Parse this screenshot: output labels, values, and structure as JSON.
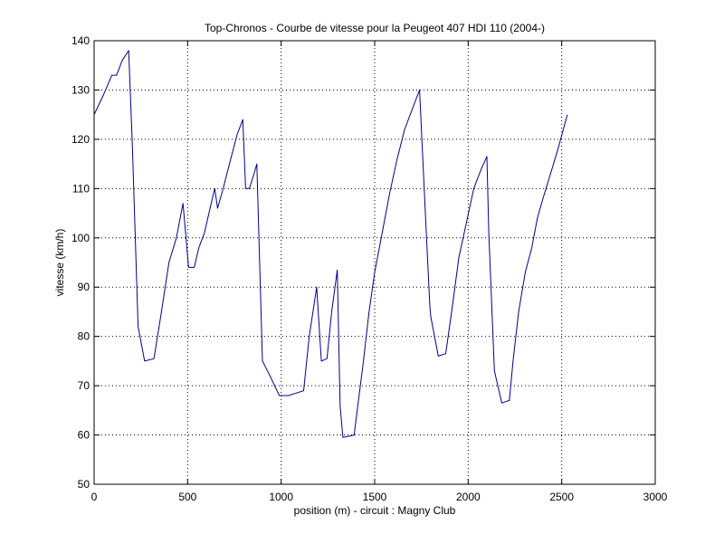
{
  "chart_data": {
    "type": "line",
    "title": "Top-Chronos - Courbe de vitesse pour la Peugeot 407 HDI 110 (2004-)",
    "xlabel": "position (m) - circuit : Magny Club",
    "ylabel": "vitesse (km/h)",
    "xlim": [
      0,
      3000
    ],
    "ylim": [
      50,
      140
    ],
    "xticks": [
      0,
      500,
      1000,
      1500,
      2000,
      2500,
      3000
    ],
    "xtick_labels": [
      "0",
      "500",
      "1000",
      "1500",
      "2000",
      "2500",
      "3000"
    ],
    "yticks": [
      50,
      60,
      70,
      80,
      90,
      100,
      110,
      120,
      130,
      140
    ],
    "ytick_labels": [
      "50",
      "60",
      "70",
      "80",
      "90",
      "100",
      "110",
      "120",
      "130",
      "140"
    ],
    "grid": true,
    "line_color": "#00008f",
    "series": [
      {
        "x": [
          0,
          50,
          95,
          120,
          150,
          185,
          205,
          235,
          270,
          320,
          360,
          400,
          440,
          475,
          505,
          535,
          560,
          590,
          620,
          645,
          660,
          690,
          730,
          765,
          795,
          810,
          830,
          855,
          870,
          900,
          940,
          990,
          1040,
          1080,
          1120,
          1150,
          1190,
          1215,
          1245,
          1270,
          1300,
          1315,
          1330,
          1390,
          1440,
          1470,
          1500,
          1540,
          1580,
          1620,
          1660,
          1700,
          1740,
          1775,
          1795,
          1800,
          1840,
          1880,
          1915,
          1950,
          1990,
          2030,
          2070,
          2100,
          2110,
          2140,
          2180,
          2220,
          2240,
          2270,
          2305,
          2340,
          2370,
          2400,
          2440,
          2480,
          2530
        ],
        "y": [
          125,
          129,
          133,
          133,
          136,
          138,
          118,
          82,
          75,
          75.5,
          85,
          95,
          100,
          107,
          94,
          94,
          98,
          101,
          106,
          110,
          106,
          110,
          116,
          121,
          124,
          110,
          110,
          113,
          115,
          75,
          72,
          68,
          68,
          68.5,
          69,
          80,
          90,
          75,
          75.5,
          85,
          93.5,
          66,
          59.5,
          60,
          75,
          85,
          93,
          101,
          109,
          116,
          122,
          126,
          130,
          102,
          86,
          84,
          76,
          76.5,
          86,
          96,
          103,
          110,
          114,
          116.5,
          101,
          73,
          66.5,
          67,
          75,
          85,
          93,
          98,
          104,
          108,
          113,
          118,
          125
        ]
      }
    ]
  }
}
